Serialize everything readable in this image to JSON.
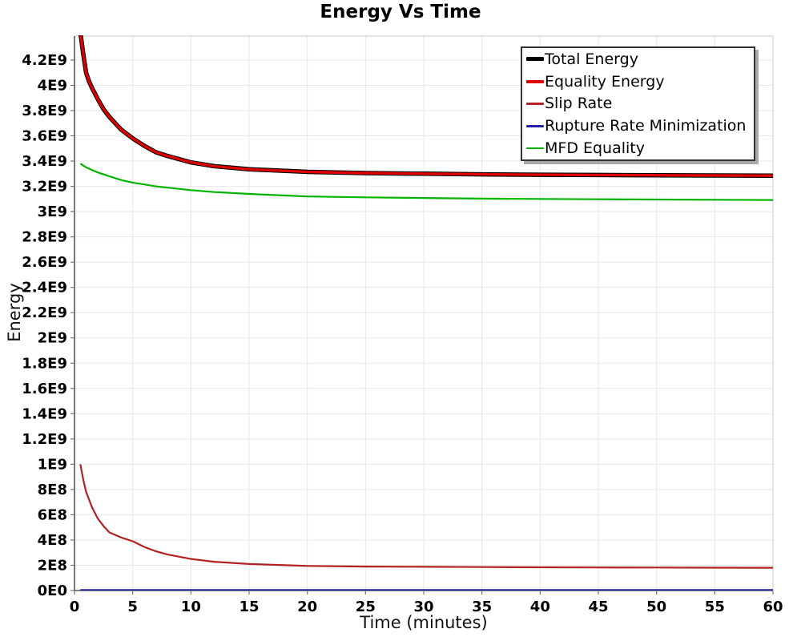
{
  "colors": {
    "grid": "#e8e8e8",
    "plot_border": "#c8c8c8",
    "axis": "#333333",
    "tick_mark": "#777777",
    "tick_text": "#000000",
    "background": "#ffffff"
  },
  "chart_data": {
    "type": "line",
    "title": "Energy Vs Time",
    "xlabel": "Time (minutes)",
    "ylabel": "Energy",
    "xlim": [
      0,
      60
    ],
    "ylim": [
      0,
      4390000000.0
    ],
    "grid": true,
    "legend_position": "top-right",
    "xticks": [
      {
        "v": 0,
        "label": "0"
      },
      {
        "v": 5,
        "label": "5"
      },
      {
        "v": 10,
        "label": "10"
      },
      {
        "v": 15,
        "label": "15"
      },
      {
        "v": 20,
        "label": "20"
      },
      {
        "v": 25,
        "label": "25"
      },
      {
        "v": 30,
        "label": "30"
      },
      {
        "v": 35,
        "label": "35"
      },
      {
        "v": 40,
        "label": "40"
      },
      {
        "v": 45,
        "label": "45"
      },
      {
        "v": 50,
        "label": "50"
      },
      {
        "v": 55,
        "label": "55"
      },
      {
        "v": 60,
        "label": "60"
      }
    ],
    "yticks": [
      {
        "v": 0,
        "label": "0E0"
      },
      {
        "v": 200000000.0,
        "label": "2E8"
      },
      {
        "v": 400000000.0,
        "label": "4E8"
      },
      {
        "v": 600000000.0,
        "label": "6E8"
      },
      {
        "v": 800000000.0,
        "label": "8E8"
      },
      {
        "v": 1000000000.0,
        "label": "1E9"
      },
      {
        "v": 1200000000.0,
        "label": "1.2E9"
      },
      {
        "v": 1400000000.0,
        "label": "1.4E9"
      },
      {
        "v": 1600000000.0,
        "label": "1.6E9"
      },
      {
        "v": 1800000000.0,
        "label": "1.8E9"
      },
      {
        "v": 2000000000.0,
        "label": "2E9"
      },
      {
        "v": 2200000000.0,
        "label": "2.2E9"
      },
      {
        "v": 2400000000.0,
        "label": "2.4E9"
      },
      {
        "v": 2600000000.0,
        "label": "2.6E9"
      },
      {
        "v": 2800000000.0,
        "label": "2.8E9"
      },
      {
        "v": 3000000000.0,
        "label": "3E9"
      },
      {
        "v": 3200000000.0,
        "label": "3.2E9"
      },
      {
        "v": 3400000000.0,
        "label": "3.4E9"
      },
      {
        "v": 3600000000.0,
        "label": "3.6E9"
      },
      {
        "v": 3800000000.0,
        "label": "3.8E9"
      },
      {
        "v": 4000000000.0,
        "label": "4E9"
      },
      {
        "v": 4200000000.0,
        "label": "4.2E9"
      }
    ],
    "x": [
      0.5,
      0.75,
      1,
      1.25,
      1.5,
      2,
      2.5,
      3,
      4,
      5,
      6,
      7,
      8,
      10,
      12,
      15,
      20,
      25,
      30,
      35,
      40,
      45,
      50,
      55,
      60
    ],
    "series": [
      {
        "name": "Total Energy",
        "color": "#000000",
        "width": 5.5,
        "legend_stroke": 5,
        "values": [
          4420000000.0,
          4250000000.0,
          4100000000.0,
          4030000000.0,
          3980000000.0,
          3890000000.0,
          3810000000.0,
          3750000000.0,
          3650000000.0,
          3580000000.0,
          3520000000.0,
          3470000000.0,
          3440000000.0,
          3390000000.0,
          3360000000.0,
          3335000000.0,
          3315000000.0,
          3305000000.0,
          3300000000.0,
          3295000000.0,
          3292000000.0,
          3290000000.0,
          3288000000.0,
          3286000000.0,
          3285000000.0
        ]
      },
      {
        "name": "Equality Energy",
        "color": "#dd0000",
        "width": 3.4,
        "legend_stroke": 4,
        "values": [
          4420000000.0,
          4250000000.0,
          4100000000.0,
          4030000000.0,
          3980000000.0,
          3890000000.0,
          3810000000.0,
          3750000000.0,
          3650000000.0,
          3580000000.0,
          3520000000.0,
          3470000000.0,
          3440000000.0,
          3390000000.0,
          3360000000.0,
          3335000000.0,
          3315000000.0,
          3305000000.0,
          3300000000.0,
          3295000000.0,
          3292000000.0,
          3290000000.0,
          3288000000.0,
          3286000000.0,
          3285000000.0
        ]
      },
      {
        "name": "Slip Rate",
        "color": "#b22222",
        "width": 2.2,
        "legend_stroke": 2.5,
        "values": [
          1000000000.0,
          880000000.0,
          780000000.0,
          720000000.0,
          660000000.0,
          570000000.0,
          510000000.0,
          460000000.0,
          420000000.0,
          390000000.0,
          345000000.0,
          310000000.0,
          285000000.0,
          250000000.0,
          228000000.0,
          210000000.0,
          195000000.0,
          190000000.0,
          188000000.0,
          186000000.0,
          184000000.0,
          183000000.0,
          182000000.0,
          181000000.0,
          180000000.0
        ]
      },
      {
        "name": "Rupture Rate Minimization",
        "color": "#2222aa",
        "width": 2,
        "legend_stroke": 2.5,
        "values": [
          5000000.0,
          5000000.0,
          5000000.0,
          5000000.0,
          5000000.0,
          5000000.0,
          5000000.0,
          5000000.0,
          5000000.0,
          5000000.0,
          5000000.0,
          5000000.0,
          5000000.0,
          5000000.0,
          5000000.0,
          5000000.0,
          5000000.0,
          5000000.0,
          5000000.0,
          5000000.0,
          5000000.0,
          5000000.0,
          5000000.0,
          5000000.0,
          5000000.0
        ]
      },
      {
        "name": "MFD Equality",
        "color": "#00b400",
        "width": 2.2,
        "legend_stroke": 2.5,
        "values": [
          3380000000.0,
          3365000000.0,
          3350000000.0,
          3340000000.0,
          3330000000.0,
          3310000000.0,
          3295000000.0,
          3280000000.0,
          3250000000.0,
          3230000000.0,
          3215000000.0,
          3200000000.0,
          3190000000.0,
          3170000000.0,
          3155000000.0,
          3140000000.0,
          3120000000.0,
          3113000000.0,
          3108000000.0,
          3103000000.0,
          3100000000.0,
          3098000000.0,
          3096000000.0,
          3094000000.0,
          3092000000.0
        ]
      }
    ]
  }
}
